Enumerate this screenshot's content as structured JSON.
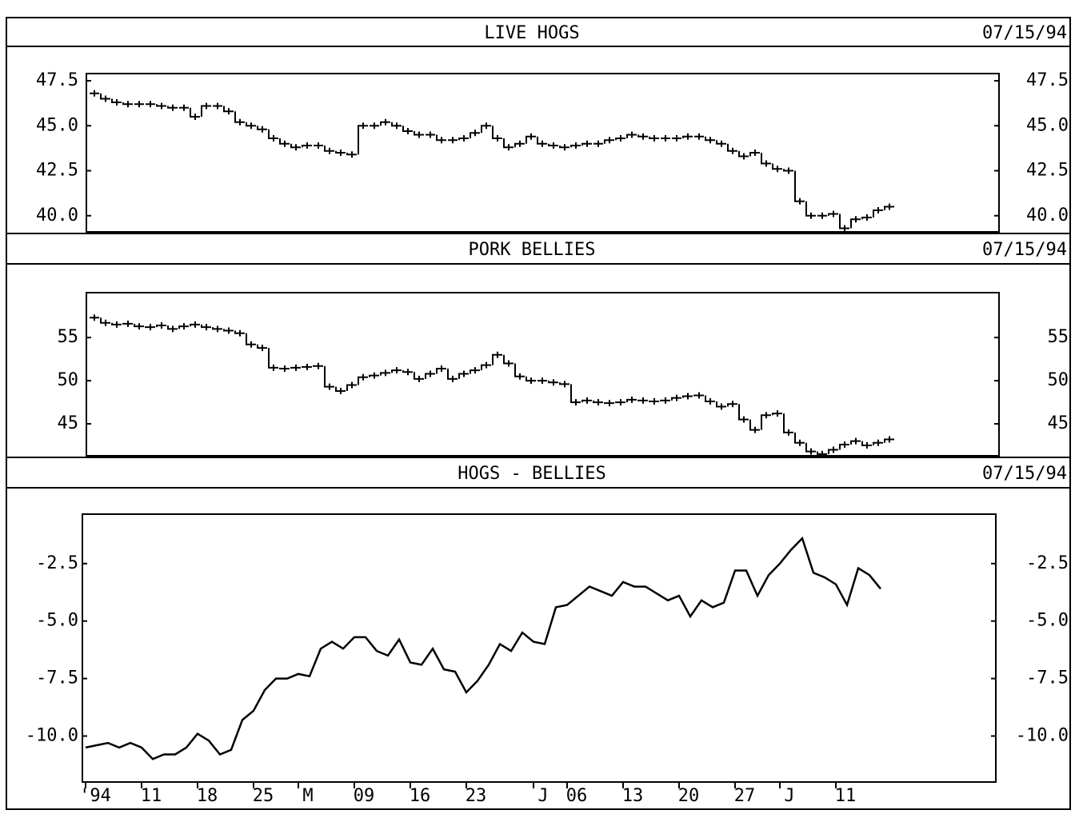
{
  "chart_data": [
    {
      "type": "step",
      "title": "LIVE HOGS",
      "date": "07/15/94",
      "values": [
        46.8,
        46.5,
        46.3,
        46.2,
        46.2,
        46.2,
        46.1,
        46.0,
        46.0,
        45.5,
        46.1,
        46.1,
        45.8,
        45.2,
        45.0,
        44.8,
        44.3,
        44.0,
        43.8,
        43.9,
        43.9,
        43.6,
        43.5,
        43.4,
        45.0,
        45.0,
        45.2,
        45.0,
        44.7,
        44.5,
        44.5,
        44.2,
        44.2,
        44.3,
        44.6,
        45.0,
        44.3,
        43.8,
        44.0,
        44.4,
        44.0,
        43.9,
        43.8,
        43.9,
        44.0,
        44.0,
        44.2,
        44.3,
        44.5,
        44.4,
        44.3,
        44.3,
        44.3,
        44.4,
        44.4,
        44.2,
        44.0,
        43.6,
        43.3,
        43.5,
        42.9,
        42.6,
        42.5,
        40.8,
        40.0,
        40.0,
        40.1,
        39.3,
        39.8,
        39.9,
        40.3,
        40.5
      ],
      "ylim": [
        39.1,
        47.9
      ],
      "yticks": [
        {
          "value": 40,
          "label": "40.0"
        },
        42.5,
        {
          "value": 45,
          "label": "45.0"
        },
        47.5
      ]
    },
    {
      "type": "step",
      "title": "PORK BELLIES",
      "date": "07/15/94",
      "values": [
        57.3,
        56.7,
        56.5,
        56.6,
        56.3,
        56.2,
        56.4,
        56.0,
        56.3,
        56.5,
        56.2,
        56.0,
        55.8,
        55.5,
        54.2,
        53.8,
        51.5,
        51.4,
        51.5,
        51.6,
        51.7,
        49.3,
        48.8,
        49.5,
        50.4,
        50.6,
        50.9,
        51.2,
        51.0,
        50.2,
        50.8,
        51.4,
        50.2,
        50.8,
        51.2,
        51.8,
        53.0,
        52.0,
        50.5,
        50.0,
        50.0,
        49.8,
        49.6,
        47.5,
        47.7,
        47.5,
        47.4,
        47.5,
        47.8,
        47.7,
        47.6,
        47.7,
        48.0,
        48.2,
        48.3,
        47.6,
        47.0,
        47.3,
        45.5,
        44.3,
        46.0,
        46.2,
        44.0,
        42.8,
        41.8,
        41.5,
        42.0,
        42.6,
        43.0,
        42.5,
        42.8,
        43.2
      ],
      "ylim": [
        41.3,
        60.2
      ],
      "yticks": [
        45,
        50,
        55
      ]
    },
    {
      "type": "line",
      "title": "HOGS - BELLIES",
      "date": "07/15/94",
      "categories": [
        "'94",
        null,
        null,
        null,
        null,
        "11",
        null,
        null,
        null,
        null,
        "18",
        null,
        null,
        null,
        null,
        "25",
        null,
        null,
        null,
        "M",
        null,
        null,
        null,
        null,
        "09",
        null,
        null,
        null,
        null,
        "16",
        null,
        null,
        null,
        null,
        "23",
        null,
        null,
        null,
        null,
        null,
        "J",
        null,
        null,
        "06",
        null,
        null,
        null,
        null,
        "13",
        null,
        null,
        null,
        null,
        "20",
        null,
        null,
        null,
        null,
        "27",
        null,
        null,
        null,
        "J",
        null,
        null,
        null,
        null,
        "11",
        null,
        null,
        null,
        null
      ],
      "values": [
        -10.5,
        -10.4,
        -10.3,
        -10.5,
        -10.3,
        -10.5,
        -11.0,
        -10.8,
        -10.8,
        -10.5,
        -9.9,
        -10.2,
        -10.8,
        -10.6,
        -9.3,
        -8.9,
        -8.0,
        -7.5,
        -7.5,
        -7.3,
        -7.4,
        -6.2,
        -5.9,
        -6.2,
        -5.7,
        -5.7,
        -6.3,
        -6.5,
        -5.8,
        -6.8,
        -6.9,
        -6.2,
        -7.1,
        -7.2,
        -8.1,
        -7.6,
        -6.9,
        -6.0,
        -6.3,
        -5.5,
        -5.9,
        -6.0,
        -4.4,
        -4.3,
        -3.9,
        -3.5,
        -3.7,
        -3.9,
        -3.3,
        -3.5,
        -3.5,
        -3.8,
        -4.1,
        -3.9,
        -4.8,
        -4.1,
        -4.4,
        -4.2,
        -2.8,
        -2.8,
        -3.9,
        -3.0,
        -2.5,
        -1.9,
        -1.4,
        -2.9,
        -3.1,
        -3.4,
        -4.3,
        -2.7,
        -3.0,
        -3.6
      ],
      "ylim": [
        -12.0,
        -0.35
      ],
      "yticks": [
        {
          "value": -10,
          "label": "-10.0"
        },
        -7.5,
        {
          "value": -5,
          "label": "-5.0"
        },
        -2.5
      ]
    }
  ]
}
